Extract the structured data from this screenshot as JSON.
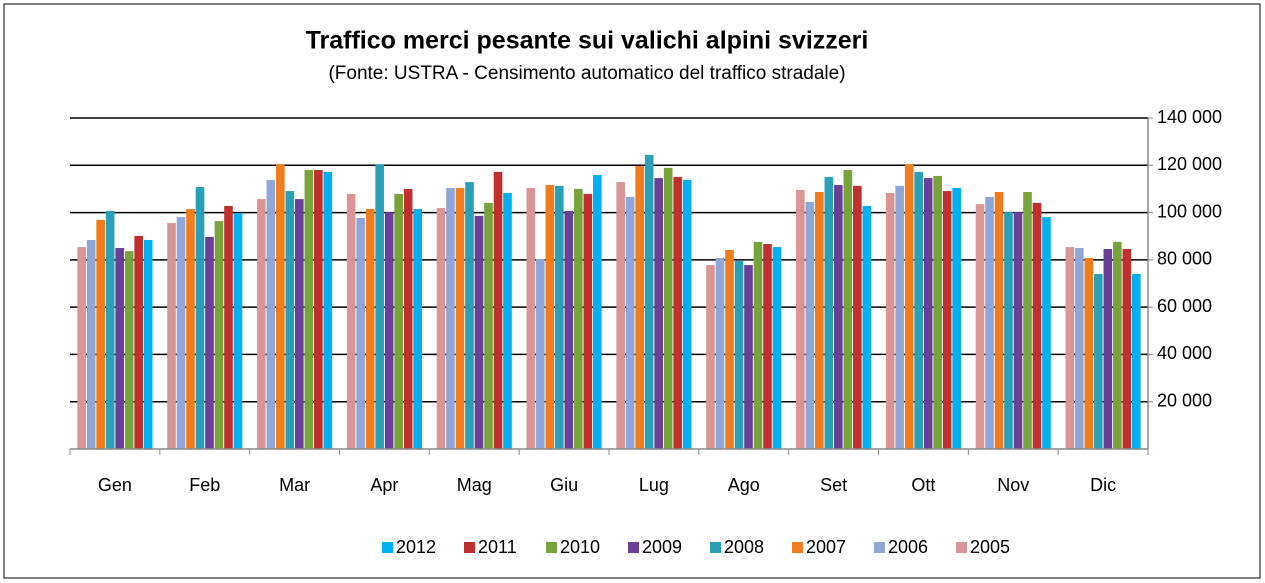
{
  "chart_data": {
    "type": "bar",
    "title": "Traffico merci pesante sui valichi alpini svizzeri",
    "subtitle": "(Fonte: USTRA - Censimento automatico del traffico stradale)",
    "categories": [
      "Gen",
      "Feb",
      "Mar",
      "Apr",
      "Mag",
      "Giu",
      "Lug",
      "Ago",
      "Set",
      "Ott",
      "Nov",
      "Dic"
    ],
    "series": [
      {
        "name": "2012",
        "color": "#00b0f0",
        "values": [
          88400,
          99800,
          117200,
          101500,
          108300,
          115900,
          113800,
          85400,
          102800,
          110400,
          98100,
          74000
        ]
      },
      {
        "name": "2011",
        "color": "#c0302e",
        "values": [
          90100,
          102800,
          118000,
          110000,
          117200,
          107900,
          115100,
          86700,
          111300,
          109100,
          104100,
          84600
        ]
      },
      {
        "name": "2010",
        "color": "#77a33a",
        "values": [
          83700,
          96400,
          118000,
          107900,
          104100,
          110000,
          118900,
          87600,
          118000,
          115500,
          108700,
          87600
        ]
      },
      {
        "name": "2009",
        "color": "#6a3f98",
        "values": [
          85000,
          89700,
          105700,
          100200,
          98600,
          100700,
          114600,
          77800,
          111700,
          114600,
          100200,
          84600
        ]
      },
      {
        "name": "2008",
        "color": "#2aa0b8",
        "values": [
          100700,
          110800,
          109100,
          120500,
          112900,
          111300,
          124400,
          79500,
          115100,
          117200,
          100200,
          74000
        ]
      },
      {
        "name": "2007",
        "color": "#f07c1e",
        "values": [
          96900,
          101500,
          120500,
          101500,
          110400,
          111700,
          119700,
          84200,
          108700,
          120500,
          108700,
          80800
        ]
      },
      {
        "name": "2006",
        "color": "#8fa7d8",
        "values": [
          88400,
          98100,
          113800,
          97700,
          110400,
          80400,
          106600,
          80800,
          104500,
          111300,
          106600,
          85000
        ]
      },
      {
        "name": "2005",
        "color": "#d99694",
        "values": [
          85400,
          95600,
          105700,
          107900,
          101900,
          110400,
          112900,
          77800,
          109600,
          108300,
          103600,
          85400
        ]
      }
    ],
    "ylim": [
      0,
      140000
    ],
    "yticks": [
      {
        "value": 20000,
        "label": "20 000"
      },
      {
        "value": 40000,
        "label": "40 000"
      },
      {
        "value": 60000,
        "label": "60 000"
      },
      {
        "value": 80000,
        "label": "80 000"
      },
      {
        "value": 100000,
        "label": "100 000"
      },
      {
        "value": 120000,
        "label": "120 000"
      },
      {
        "value": 140000,
        "label": "140 000"
      }
    ],
    "grid": true
  }
}
